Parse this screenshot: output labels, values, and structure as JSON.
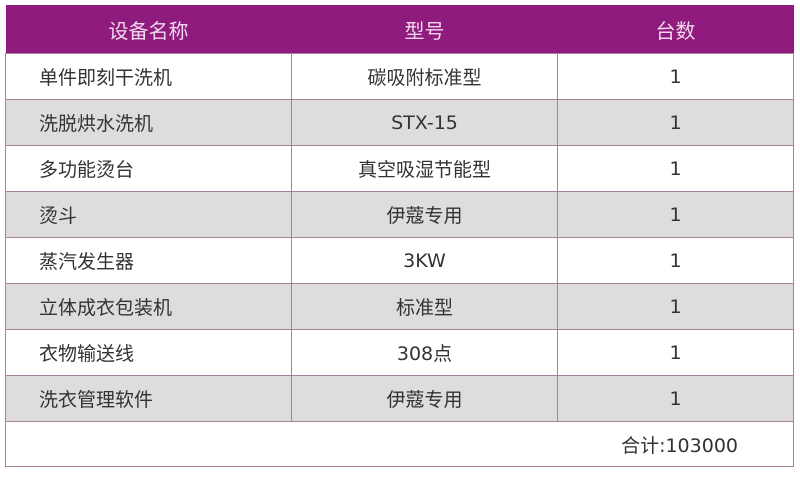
{
  "headers": [
    "设备名称",
    "型号",
    "台数"
  ],
  "rows": [
    {
      "name": "单件即刻干洗机",
      "model": "碳吸附标准型",
      "qty": "1"
    },
    {
      "name": "洗脱烘水洗机",
      "model": "STX-15",
      "qty": "1"
    },
    {
      "name": "多功能烫台",
      "model": "真空吸湿节能型",
      "qty": "1"
    },
    {
      "name": "烫斗",
      "model": "伊蔻专用",
      "qty": "1"
    },
    {
      "name": "蒸汽发生器",
      "model": "3KW",
      "qty": "1"
    },
    {
      "name": "立体成衣包装机",
      "model": "标准型",
      "qty": "1"
    },
    {
      "name": "衣物输送线",
      "model": "308点",
      "qty": "1"
    },
    {
      "name": "洗衣管理软件",
      "model": "伊蔻专用",
      "qty": "1"
    }
  ],
  "total": "合计:103000",
  "colors": {
    "header_bg": "#8e1b7d",
    "alt_row_bg": "#dedddb",
    "border": "#a9809c"
  }
}
